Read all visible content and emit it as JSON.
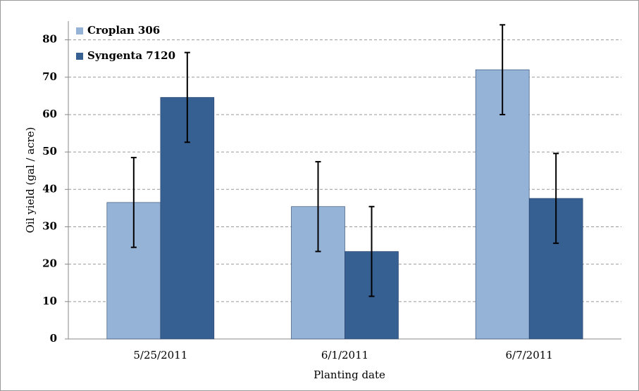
{
  "chart_data": {
    "type": "bar",
    "x_label": "Planting date",
    "y_label": "Oil yield (gal / acre)",
    "categories": [
      "5/25/2011",
      "6/1/2011",
      "6/7/2011"
    ],
    "series": [
      {
        "name": "Croplan 306",
        "color": "#95b3d7",
        "values": [
          36.5,
          35.4,
          72
        ],
        "errors": [
          12,
          12,
          12
        ]
      },
      {
        "name": "Syngenta 7120",
        "color": "#366092",
        "values": [
          64.6,
          23.4,
          37.6
        ],
        "errors": [
          12,
          12,
          12
        ]
      }
    ],
    "ylim": [
      0,
      85
    ],
    "yticks": [
      0,
      10,
      20,
      30,
      40,
      50,
      60,
      70,
      80
    ],
    "grid": true,
    "legend": "upper left"
  }
}
